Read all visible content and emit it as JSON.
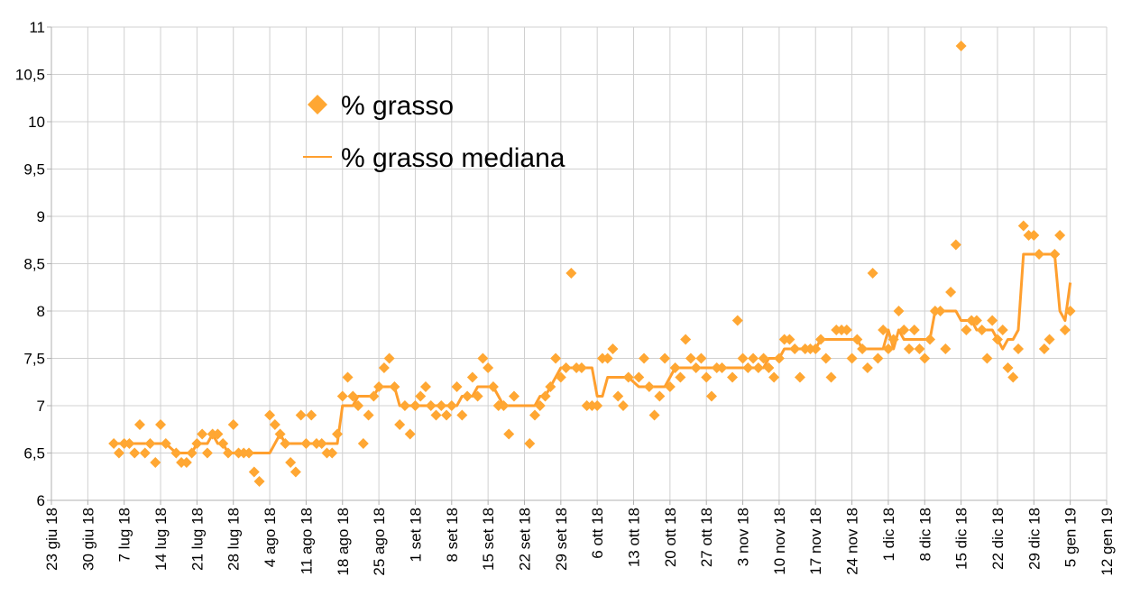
{
  "chart_data": {
    "type": "line",
    "x": [
      "2018-07-05",
      "2018-07-06",
      "2018-07-07",
      "2018-07-08",
      "2018-07-09",
      "2018-07-10",
      "2018-07-11",
      "2018-07-12",
      "2018-07-13",
      "2018-07-14",
      "2018-07-15",
      "2018-07-17",
      "2018-07-18",
      "2018-07-19",
      "2018-07-20",
      "2018-07-21",
      "2018-07-22",
      "2018-07-23",
      "2018-07-24",
      "2018-07-25",
      "2018-07-26",
      "2018-07-27",
      "2018-07-28",
      "2018-07-29",
      "2018-07-30",
      "2018-07-31",
      "2018-08-01",
      "2018-08-02",
      "2018-08-04",
      "2018-08-05",
      "2018-08-06",
      "2018-08-07",
      "2018-08-08",
      "2018-08-09",
      "2018-08-10",
      "2018-08-11",
      "2018-08-12",
      "2018-08-13",
      "2018-08-14",
      "2018-08-15",
      "2018-08-16",
      "2018-08-17",
      "2018-08-18",
      "2018-08-19",
      "2018-08-20",
      "2018-08-21",
      "2018-08-22",
      "2018-08-23",
      "2018-08-24",
      "2018-08-25",
      "2018-08-26",
      "2018-08-27",
      "2018-08-28",
      "2018-08-29",
      "2018-08-30",
      "2018-08-31",
      "2018-09-01",
      "2018-09-02",
      "2018-09-03",
      "2018-09-04",
      "2018-09-05",
      "2018-09-06",
      "2018-09-07",
      "2018-09-08",
      "2018-09-09",
      "2018-09-10",
      "2018-09-11",
      "2018-09-12",
      "2018-09-13",
      "2018-09-14",
      "2018-09-15",
      "2018-09-16",
      "2018-09-17",
      "2018-09-18",
      "2018-09-19",
      "2018-09-20",
      "2018-09-23",
      "2018-09-24",
      "2018-09-25",
      "2018-09-26",
      "2018-09-27",
      "2018-09-28",
      "2018-09-29",
      "2018-09-30",
      "2018-10-01",
      "2018-10-02",
      "2018-10-03",
      "2018-10-04",
      "2018-10-05",
      "2018-10-06",
      "2018-10-07",
      "2018-10-08",
      "2018-10-09",
      "2018-10-10",
      "2018-10-11",
      "2018-10-12",
      "2018-10-14",
      "2018-10-15",
      "2018-10-16",
      "2018-10-17",
      "2018-10-18",
      "2018-10-19",
      "2018-10-20",
      "2018-10-21",
      "2018-10-22",
      "2018-10-23",
      "2018-10-24",
      "2018-10-25",
      "2018-10-26",
      "2018-10-27",
      "2018-10-28",
      "2018-10-29",
      "2018-10-30",
      "2018-11-01",
      "2018-11-02",
      "2018-11-03",
      "2018-11-04",
      "2018-11-05",
      "2018-11-06",
      "2018-11-07",
      "2018-11-08",
      "2018-11-09",
      "2018-11-10",
      "2018-11-11",
      "2018-11-12",
      "2018-11-13",
      "2018-11-14",
      "2018-11-15",
      "2018-11-16",
      "2018-11-17",
      "2018-11-18",
      "2018-11-19",
      "2018-11-20",
      "2018-11-21",
      "2018-11-22",
      "2018-11-23",
      "2018-11-24",
      "2018-11-25",
      "2018-11-26",
      "2018-11-27",
      "2018-11-28",
      "2018-11-29",
      "2018-11-30",
      "2018-12-01",
      "2018-12-02",
      "2018-12-03",
      "2018-12-04",
      "2018-12-05",
      "2018-12-06",
      "2018-12-07",
      "2018-12-08",
      "2018-12-09",
      "2018-12-10",
      "2018-12-11",
      "2018-12-12",
      "2018-12-13",
      "2018-12-14",
      "2018-12-15",
      "2018-12-16",
      "2018-12-17",
      "2018-12-18",
      "2018-12-19",
      "2018-12-20",
      "2018-12-21",
      "2018-12-22",
      "2018-12-23",
      "2018-12-24",
      "2018-12-25",
      "2018-12-26",
      "2018-12-27",
      "2018-12-28",
      "2018-12-29",
      "2018-12-30",
      "2018-12-31",
      "2019-01-01",
      "2019-01-02",
      "2019-01-03",
      "2019-01-04",
      "2019-01-05"
    ],
    "series": [
      {
        "name": "% grasso",
        "kind": "scatter",
        "color": "#ffa733",
        "values": [
          6.6,
          6.5,
          6.6,
          6.6,
          6.5,
          6.8,
          6.5,
          6.6,
          6.4,
          6.8,
          6.6,
          6.5,
          6.4,
          6.4,
          6.5,
          6.6,
          6.7,
          6.5,
          6.7,
          6.7,
          6.6,
          6.5,
          6.8,
          6.5,
          6.5,
          6.5,
          6.3,
          6.2,
          6.9,
          6.8,
          6.7,
          6.6,
          6.4,
          6.3,
          6.9,
          6.6,
          6.9,
          6.6,
          6.6,
          6.5,
          6.5,
          6.7,
          7.1,
          7.3,
          7.1,
          7.0,
          6.6,
          6.9,
          7.1,
          7.2,
          7.4,
          7.5,
          7.2,
          6.8,
          7.0,
          6.7,
          7.0,
          7.1,
          7.2,
          7.0,
          6.9,
          7.0,
          6.9,
          7.0,
          7.2,
          6.9,
          7.1,
          7.3,
          7.1,
          7.5,
          7.4,
          7.2,
          7.0,
          7.0,
          6.7,
          7.1,
          6.6,
          6.9,
          7.0,
          7.1,
          7.2,
          7.5,
          7.3,
          7.4,
          8.4,
          7.4,
          7.4,
          7.0,
          7.0,
          7.0,
          7.5,
          7.5,
          7.6,
          7.1,
          7.0,
          7.3,
          7.3,
          7.5,
          7.2,
          6.9,
          7.1,
          7.5,
          7.2,
          7.4,
          7.3,
          7.7,
          7.5,
          7.4,
          7.5,
          7.3,
          7.1,
          7.4,
          7.4,
          7.3,
          7.9,
          7.5,
          7.4,
          7.5,
          7.4,
          7.5,
          7.4,
          7.3,
          7.5,
          7.7,
          7.7,
          7.6,
          7.3,
          7.6,
          7.6,
          7.6,
          7.7,
          7.5,
          7.3,
          7.8,
          7.8,
          7.8,
          7.5,
          7.7,
          7.6,
          7.4,
          8.4,
          7.5,
          7.8,
          7.6,
          7.7,
          8.0,
          7.8,
          7.6,
          7.8,
          7.6,
          7.5,
          7.7,
          8.0,
          8.0,
          7.6,
          8.2,
          8.7,
          10.8,
          7.8,
          7.9,
          7.9,
          7.8,
          7.5,
          7.9,
          7.7,
          7.8,
          7.4,
          7.3,
          7.6,
          8.9,
          8.8,
          8.8,
          8.6,
          7.6,
          7.7,
          8.6,
          8.8,
          7.8,
          8.0
        ]
      },
      {
        "name": "% grasso mediana",
        "kind": "line",
        "color": "#ff9f2e",
        "values": [
          6.6,
          6.6,
          6.6,
          6.6,
          6.6,
          6.6,
          6.6,
          6.6,
          6.6,
          6.6,
          6.6,
          6.5,
          6.5,
          6.5,
          6.5,
          6.6,
          6.6,
          6.6,
          6.7,
          6.6,
          6.6,
          6.5,
          6.5,
          6.5,
          6.5,
          6.5,
          6.5,
          6.5,
          6.5,
          6.6,
          6.7,
          6.6,
          6.6,
          6.6,
          6.6,
          6.6,
          6.6,
          6.6,
          6.6,
          6.6,
          6.6,
          6.6,
          7.0,
          7.0,
          7.0,
          7.1,
          7.1,
          7.1,
          7.1,
          7.2,
          7.2,
          7.2,
          7.2,
          7.0,
          7.0,
          7.0,
          7.0,
          7.0,
          7.0,
          7.0,
          7.0,
          7.0,
          7.0,
          7.0,
          7.0,
          7.1,
          7.1,
          7.1,
          7.2,
          7.2,
          7.2,
          7.2,
          7.1,
          7.0,
          7.0,
          7.0,
          7.0,
          7.0,
          7.1,
          7.1,
          7.2,
          7.3,
          7.4,
          7.4,
          7.4,
          7.4,
          7.4,
          7.4,
          7.4,
          7.1,
          7.1,
          7.3,
          7.3,
          7.3,
          7.3,
          7.3,
          7.2,
          7.2,
          7.2,
          7.2,
          7.2,
          7.2,
          7.3,
          7.4,
          7.4,
          7.4,
          7.4,
          7.4,
          7.4,
          7.4,
          7.4,
          7.4,
          7.4,
          7.4,
          7.4,
          7.4,
          7.4,
          7.4,
          7.4,
          7.4,
          7.5,
          7.5,
          7.5,
          7.6,
          7.6,
          7.6,
          7.6,
          7.6,
          7.6,
          7.6,
          7.7,
          7.7,
          7.7,
          7.7,
          7.7,
          7.7,
          7.7,
          7.7,
          7.6,
          7.6,
          7.6,
          7.6,
          7.6,
          7.8,
          7.6,
          7.8,
          7.7,
          7.7,
          7.7,
          7.7,
          7.7,
          7.7,
          8.0,
          8.0,
          8.0,
          8.0,
          8.0,
          7.9,
          7.9,
          7.9,
          7.8,
          7.8,
          7.8,
          7.8,
          7.7,
          7.6,
          7.7,
          7.7,
          7.8,
          8.6,
          8.6,
          8.6,
          8.6,
          8.6,
          8.6,
          8.6,
          8.0,
          7.9,
          8.3
        ]
      }
    ],
    "xlim": [
      "2018-06-23",
      "2019-01-12"
    ],
    "xticks": [
      {
        "value": "2018-06-23",
        "label": "23 giu 18"
      },
      {
        "value": "2018-06-30",
        "label": "30 giu 18"
      },
      {
        "value": "2018-07-07",
        "label": "7 lug 18"
      },
      {
        "value": "2018-07-14",
        "label": "14 lug 18"
      },
      {
        "value": "2018-07-21",
        "label": "21 lug 18"
      },
      {
        "value": "2018-07-28",
        "label": "28 lug 18"
      },
      {
        "value": "2018-08-04",
        "label": "4 ago 18"
      },
      {
        "value": "2018-08-11",
        "label": "11 ago 18"
      },
      {
        "value": "2018-08-18",
        "label": "18 ago 18"
      },
      {
        "value": "2018-08-25",
        "label": "25 ago 18"
      },
      {
        "value": "2018-09-01",
        "label": "1 set 18"
      },
      {
        "value": "2018-09-08",
        "label": "8 set 18"
      },
      {
        "value": "2018-09-15",
        "label": "15 set 18"
      },
      {
        "value": "2018-09-22",
        "label": "22 set 18"
      },
      {
        "value": "2018-09-29",
        "label": "29 set 18"
      },
      {
        "value": "2018-10-06",
        "label": "6 ott 18"
      },
      {
        "value": "2018-10-13",
        "label": "13 ott 18"
      },
      {
        "value": "2018-10-20",
        "label": "20 ott 18"
      },
      {
        "value": "2018-10-27",
        "label": "27 ott 18"
      },
      {
        "value": "2018-11-03",
        "label": "3 nov 18"
      },
      {
        "value": "2018-11-10",
        "label": "10 nov 18"
      },
      {
        "value": "2018-11-17",
        "label": "17 nov 18"
      },
      {
        "value": "2018-11-24",
        "label": "24 nov 18"
      },
      {
        "value": "2018-12-01",
        "label": "1 dic 18"
      },
      {
        "value": "2018-12-08",
        "label": "8 dic 18"
      },
      {
        "value": "2018-12-15",
        "label": "15 dic 18"
      },
      {
        "value": "2018-12-22",
        "label": "22 dic 18"
      },
      {
        "value": "2018-12-29",
        "label": "29 dic 18"
      },
      {
        "value": "2019-01-05",
        "label": "5 gen 19"
      },
      {
        "value": "2019-01-12",
        "label": "12 gen 19"
      }
    ],
    "ylim": [
      6,
      11
    ],
    "yticks": [
      6,
      {
        "value": 6.5,
        "label": "6,5"
      },
      7,
      {
        "value": 7.5,
        "label": "7,5"
      },
      8,
      {
        "value": 8.5,
        "label": "8,5"
      },
      9,
      {
        "value": 9.5,
        "label": "9,5"
      },
      10,
      {
        "value": 10.5,
        "label": "10,5"
      },
      11
    ],
    "grid": true,
    "legend": "top-center"
  }
}
